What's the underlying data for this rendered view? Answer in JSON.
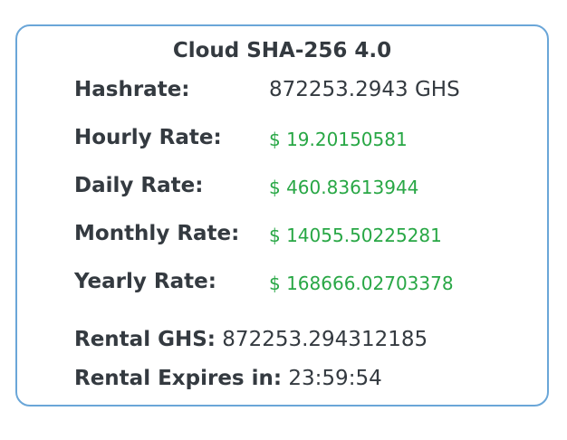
{
  "title": "Cloud SHA-256 4.0",
  "colors": {
    "border": "#6aa6d8",
    "rate": "#28a745",
    "text": "#343a40"
  },
  "rows": [
    {
      "label": "Hashrate:",
      "value": "872253.2943 GHS"
    },
    {
      "label": "Hourly Rate:",
      "value": "$ 19.20150581"
    },
    {
      "label": "Daily Rate:",
      "value": "$ 460.83613944"
    },
    {
      "label": "Monthly Rate:",
      "value": "$ 14055.50225281"
    },
    {
      "label": "Yearly Rate:",
      "value": "$ 168666.02703378"
    }
  ],
  "rental": {
    "ghs_label": "Rental GHS:",
    "ghs_value": "872253.294312185",
    "expires_label": "Rental Expires in:",
    "expires_value": "23:59:54"
  }
}
